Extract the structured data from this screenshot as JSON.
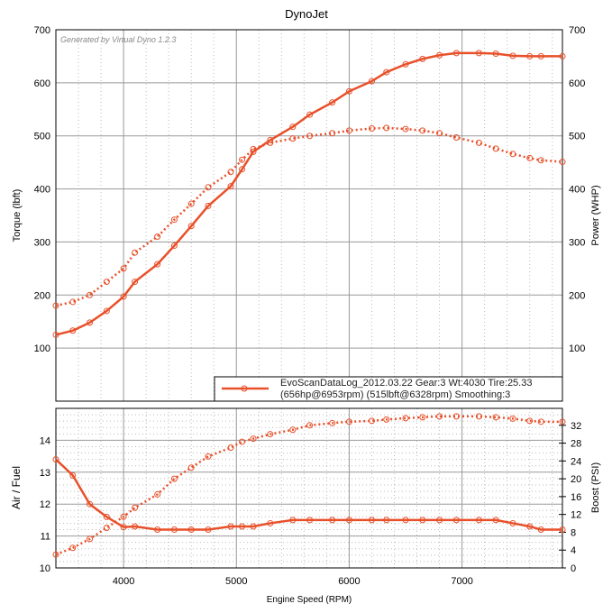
{
  "title": "DynoJet",
  "watermark": "Generated by Virtual Dyno 1.2.3",
  "colors": {
    "series": "#e8502a",
    "grid": "#aaaaaa"
  },
  "legend": {
    "line1": "EvoScanDataLog_2012.03.22 Gear:3 Wt:4030 Tire:25.33",
    "line2": "(656hp@6953rpm) (515lbft@6328rpm) Smoothing:3"
  },
  "chart_data": [
    {
      "type": "line",
      "name": "upper",
      "ylabel": "Torque (lbft)",
      "y2label": "Power (WHP)",
      "xlim": [
        3400,
        7890
      ],
      "ylim": [
        0,
        700
      ],
      "yticks": [
        100,
        200,
        300,
        400,
        500,
        600,
        700
      ],
      "xticks": [
        4000,
        5000,
        6000,
        7000
      ],
      "x": [
        3400,
        3550,
        3700,
        3850,
        4000,
        4100,
        4300,
        4450,
        4600,
        4750,
        4950,
        5050,
        5150,
        5300,
        5500,
        5650,
        5850,
        6000,
        6200,
        6330,
        6500,
        6650,
        6800,
        6950,
        7150,
        7300,
        7450,
        7600,
        7700,
        7890
      ],
      "series": [
        {
          "name": "Power (WHP)",
          "style": "solid",
          "values": [
            125,
            133,
            148,
            170,
            197,
            225,
            258,
            293,
            330,
            368,
            405,
            437,
            470,
            492,
            517,
            540,
            563,
            584,
            603,
            620,
            635,
            645,
            652,
            656,
            656,
            655,
            651,
            650,
            650,
            650
          ]
        },
        {
          "name": "Torque (lbft)",
          "style": "dotted",
          "values": [
            180,
            187,
            200,
            225,
            250,
            280,
            310,
            342,
            372,
            403,
            432,
            455,
            475,
            487,
            495,
            500,
            505,
            510,
            514,
            515,
            513,
            510,
            505,
            497,
            487,
            476,
            466,
            458,
            454,
            451
          ]
        }
      ]
    },
    {
      "type": "line",
      "name": "lower",
      "xlabel": "Engine Speed (RPM)",
      "ylabel": "Air / Fuel",
      "y2label": "Boost (PSI)",
      "xlim": [
        3400,
        7890
      ],
      "ylim": [
        10,
        15
      ],
      "y2lim": [
        0,
        35.8
      ],
      "yticks": [
        10,
        11,
        12,
        13,
        14
      ],
      "y2ticks": [
        0,
        4,
        8,
        12,
        16,
        20,
        24,
        28,
        32
      ],
      "xticks": [
        4000,
        5000,
        6000,
        7000
      ],
      "x": [
        3400,
        3550,
        3700,
        3850,
        4000,
        4100,
        4300,
        4450,
        4600,
        4750,
        4950,
        5050,
        5150,
        5300,
        5500,
        5650,
        5850,
        6000,
        6200,
        6330,
        6500,
        6650,
        6800,
        6950,
        7150,
        7300,
        7450,
        7600,
        7700,
        7890
      ],
      "series": [
        {
          "name": "Air / Fuel",
          "style": "solid",
          "axis": "left",
          "values": [
            13.4,
            12.9,
            12.0,
            11.6,
            11.28,
            11.3,
            11.2,
            11.2,
            11.2,
            11.2,
            11.3,
            11.3,
            11.3,
            11.4,
            11.5,
            11.5,
            11.5,
            11.5,
            11.5,
            11.5,
            11.5,
            11.5,
            11.5,
            11.5,
            11.5,
            11.5,
            11.4,
            11.3,
            11.2,
            11.2
          ]
        },
        {
          "name": "Boost (PSI)",
          "style": "dotted",
          "axis": "right",
          "values": [
            3,
            4.5,
            6.5,
            9,
            11.5,
            13.5,
            16.5,
            20,
            22.5,
            25,
            27,
            28.3,
            29,
            30,
            31,
            32,
            32.5,
            32.8,
            33,
            33.3,
            33.6,
            33.8,
            34,
            34,
            34,
            33.8,
            33.5,
            33,
            32.8,
            32.8
          ]
        }
      ]
    }
  ]
}
